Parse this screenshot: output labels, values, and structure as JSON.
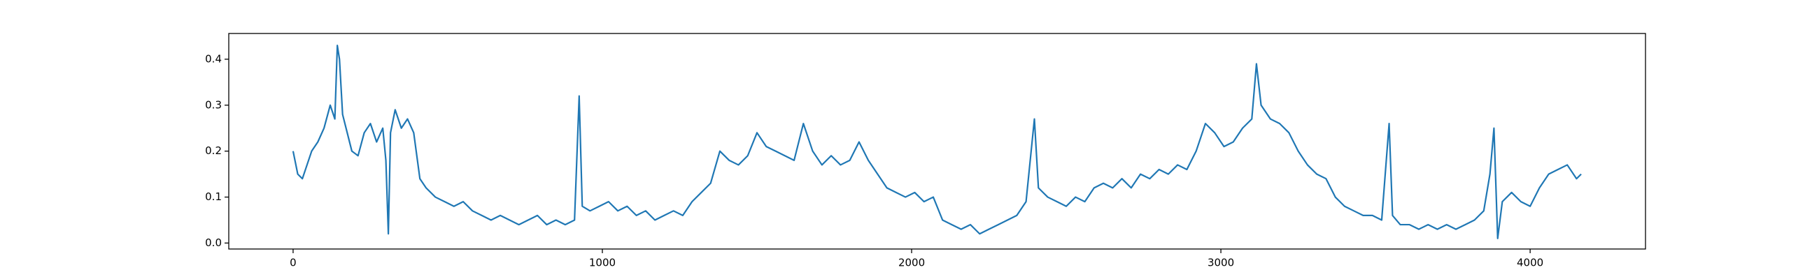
{
  "chart_data": {
    "type": "line",
    "x": [
      0,
      15,
      30,
      45,
      60,
      80,
      100,
      120,
      135,
      143,
      150,
      160,
      175,
      190,
      210,
      230,
      250,
      270,
      290,
      300,
      308,
      315,
      330,
      350,
      370,
      390,
      410,
      430,
      460,
      490,
      520,
      550,
      580,
      610,
      640,
      670,
      700,
      730,
      760,
      790,
      820,
      850,
      880,
      910,
      925,
      935,
      960,
      990,
      1020,
      1050,
      1080,
      1110,
      1140,
      1170,
      1200,
      1230,
      1260,
      1290,
      1320,
      1350,
      1380,
      1410,
      1440,
      1470,
      1500,
      1530,
      1560,
      1590,
      1620,
      1650,
      1680,
      1710,
      1740,
      1770,
      1800,
      1830,
      1860,
      1890,
      1920,
      1950,
      1980,
      2010,
      2040,
      2070,
      2100,
      2130,
      2160,
      2190,
      2220,
      2250,
      2280,
      2310,
      2340,
      2370,
      2397,
      2410,
      2440,
      2470,
      2500,
      2530,
      2560,
      2590,
      2620,
      2650,
      2680,
      2710,
      2740,
      2770,
      2800,
      2830,
      2860,
      2890,
      2920,
      2950,
      2980,
      3010,
      3040,
      3070,
      3100,
      3115,
      3130,
      3160,
      3190,
      3220,
      3250,
      3280,
      3310,
      3340,
      3370,
      3400,
      3430,
      3460,
      3490,
      3520,
      3544,
      3555,
      3580,
      3610,
      3640,
      3670,
      3700,
      3730,
      3760,
      3790,
      3820,
      3850,
      3870,
      3883,
      3895,
      3910,
      3940,
      3970,
      4000,
      4030,
      4060,
      4090,
      4120,
      4150,
      4165
    ],
    "values": [
      0.2,
      0.15,
      0.14,
      0.17,
      0.2,
      0.22,
      0.25,
      0.3,
      0.27,
      0.43,
      0.4,
      0.28,
      0.24,
      0.2,
      0.19,
      0.24,
      0.26,
      0.22,
      0.25,
      0.18,
      0.02,
      0.24,
      0.29,
      0.25,
      0.27,
      0.24,
      0.14,
      0.12,
      0.1,
      0.09,
      0.08,
      0.09,
      0.07,
      0.06,
      0.05,
      0.06,
      0.05,
      0.04,
      0.05,
      0.06,
      0.04,
      0.05,
      0.04,
      0.05,
      0.32,
      0.08,
      0.07,
      0.08,
      0.09,
      0.07,
      0.08,
      0.06,
      0.07,
      0.05,
      0.06,
      0.07,
      0.06,
      0.09,
      0.11,
      0.13,
      0.2,
      0.18,
      0.17,
      0.19,
      0.24,
      0.21,
      0.2,
      0.19,
      0.18,
      0.26,
      0.2,
      0.17,
      0.19,
      0.17,
      0.18,
      0.22,
      0.18,
      0.15,
      0.12,
      0.11,
      0.1,
      0.11,
      0.09,
      0.1,
      0.05,
      0.04,
      0.03,
      0.04,
      0.02,
      0.03,
      0.04,
      0.05,
      0.06,
      0.09,
      0.27,
      0.12,
      0.1,
      0.09,
      0.08,
      0.1,
      0.09,
      0.12,
      0.13,
      0.12,
      0.14,
      0.12,
      0.15,
      0.14,
      0.16,
      0.15,
      0.17,
      0.16,
      0.2,
      0.26,
      0.24,
      0.21,
      0.22,
      0.25,
      0.27,
      0.39,
      0.3,
      0.27,
      0.26,
      0.24,
      0.2,
      0.17,
      0.15,
      0.14,
      0.1,
      0.08,
      0.07,
      0.06,
      0.06,
      0.05,
      0.26,
      0.06,
      0.04,
      0.04,
      0.03,
      0.04,
      0.03,
      0.04,
      0.03,
      0.04,
      0.05,
      0.07,
      0.15,
      0.25,
      0.01,
      0.09,
      0.11,
      0.09,
      0.08,
      0.12,
      0.15,
      0.16,
      0.17,
      0.14,
      0.15
    ],
    "color": "#1f77b4",
    "xlim": [
      -208,
      4373
    ],
    "xticks": [
      0,
      1000,
      2000,
      3000,
      4000
    ],
    "ylim": [
      -0.013,
      0.456
    ],
    "yticks": [
      {
        "value": 0,
        "label": "0.0"
      },
      0.1,
      0.2,
      0.3,
      0.4
    ],
    "grid": false
  }
}
